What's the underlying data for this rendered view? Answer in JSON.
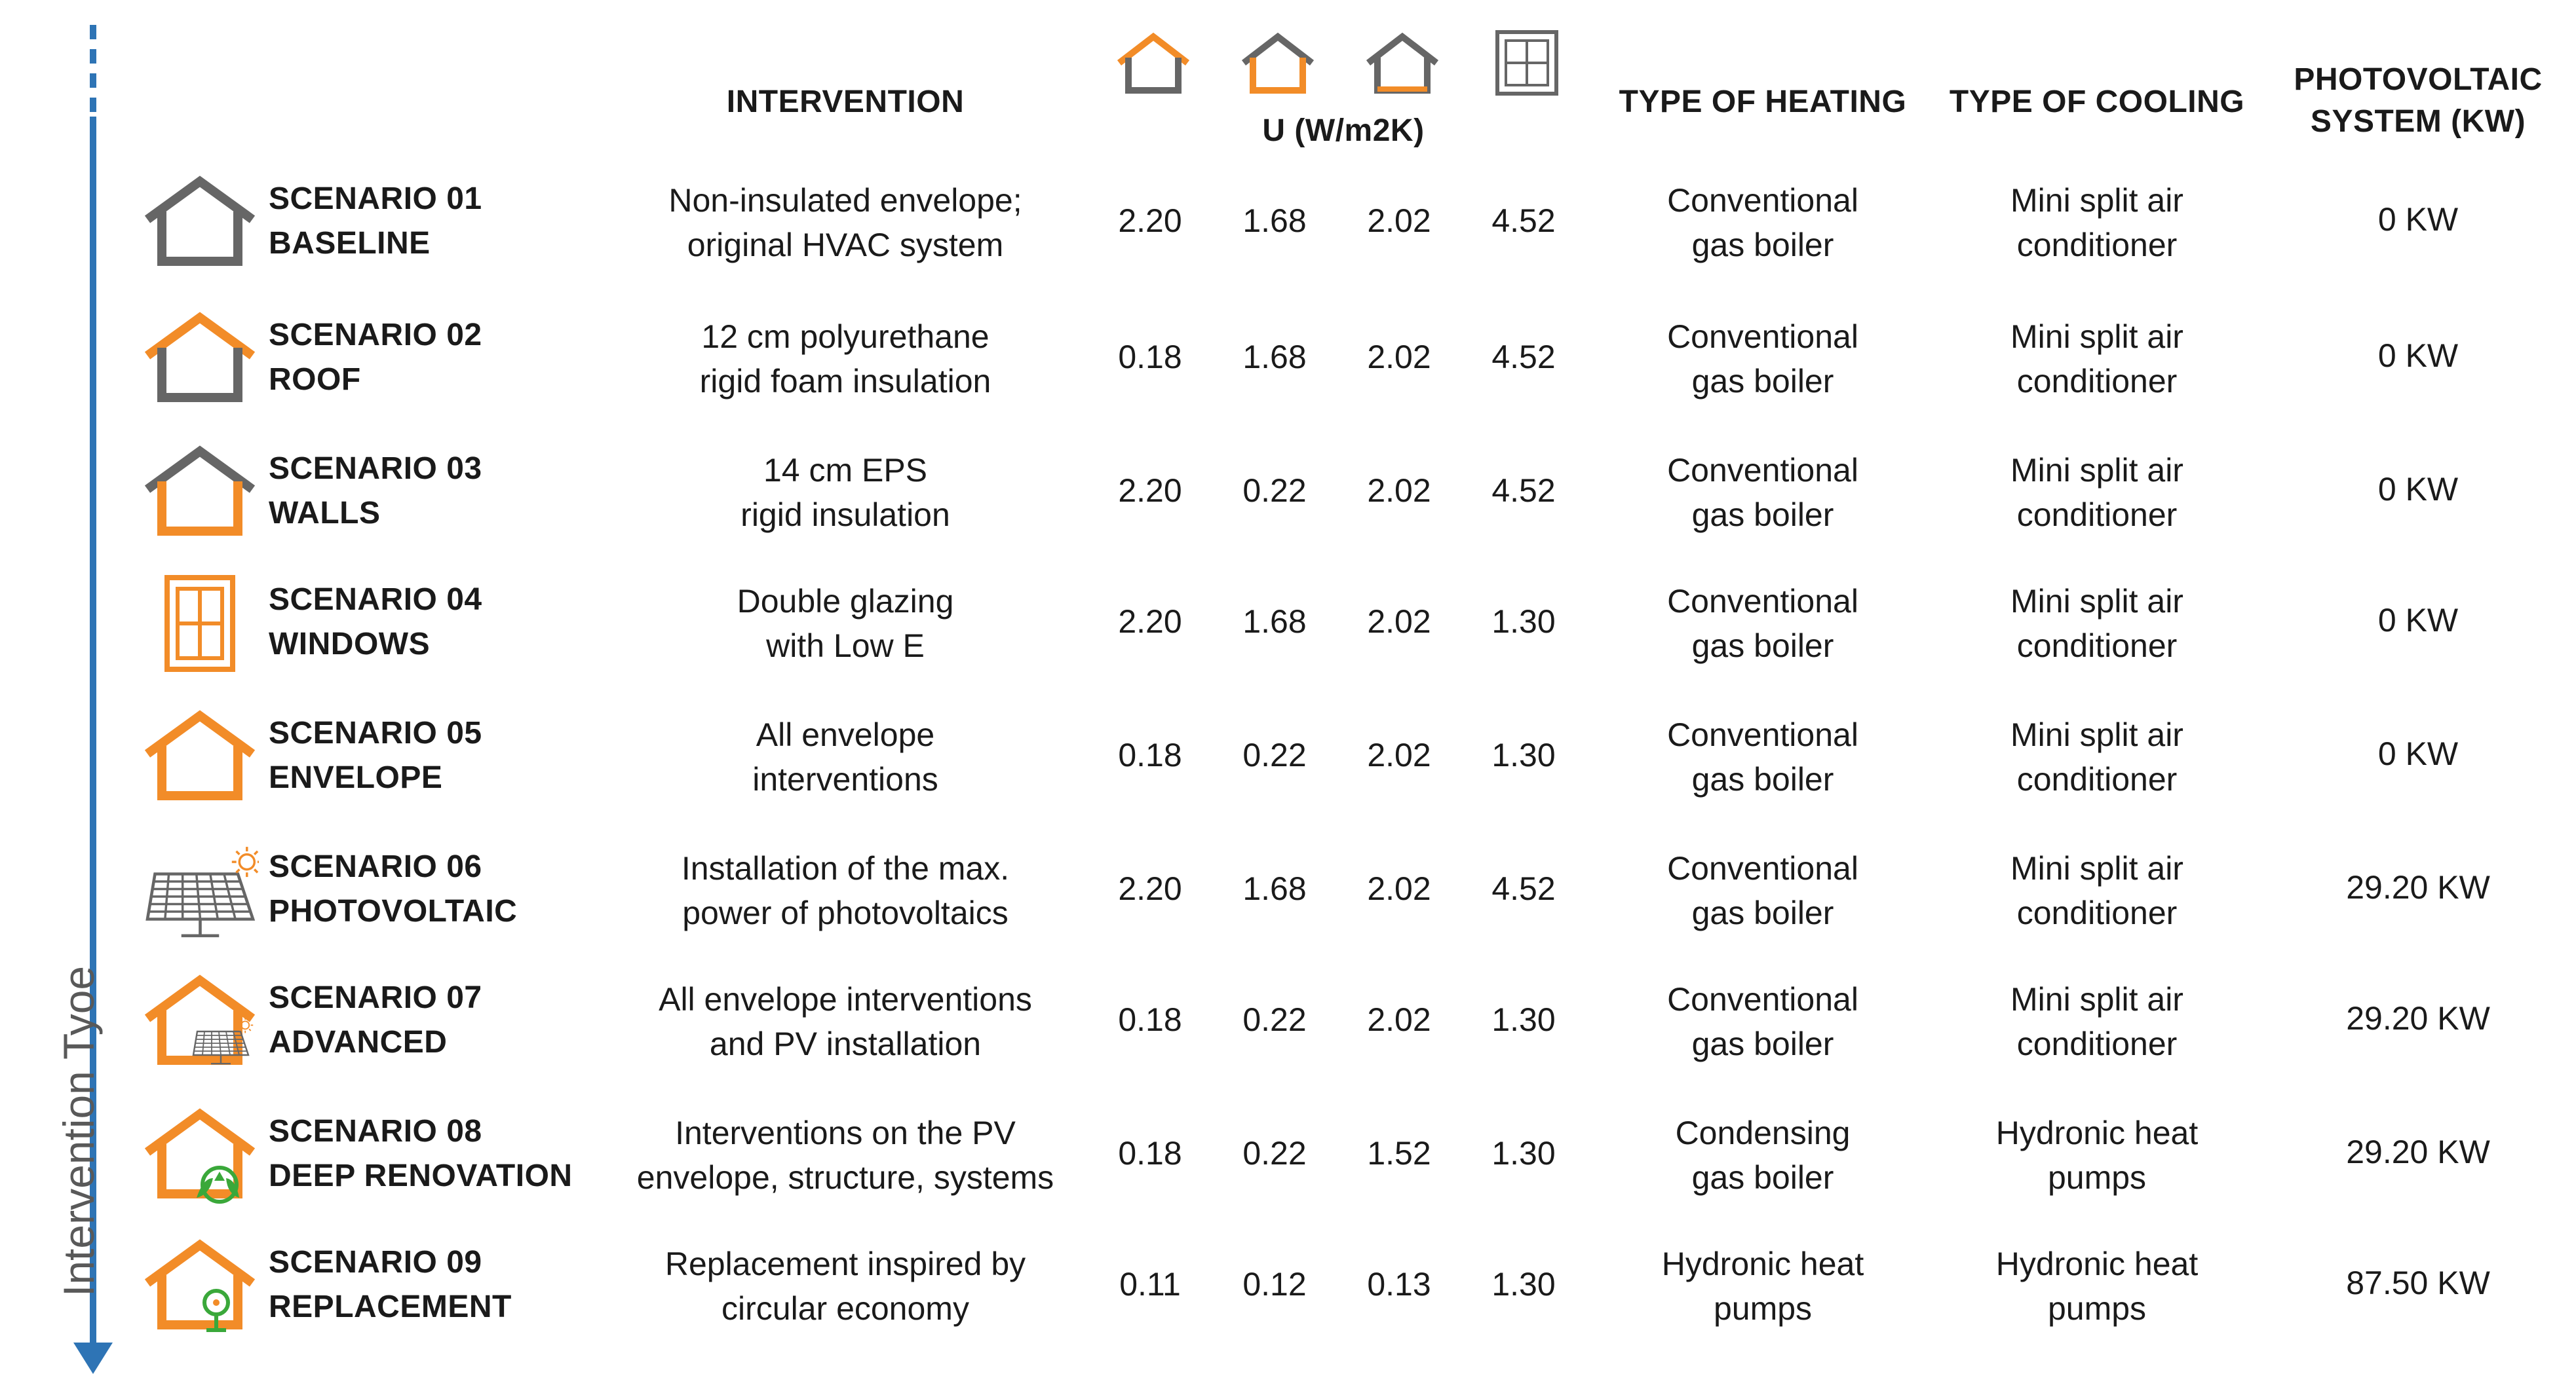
{
  "axis_label": "Intervention Tyoe",
  "headers": {
    "intervention": "INTERVENTION",
    "u_value": "U (W/m2K)",
    "heating": "TYPE OF HEATING",
    "cooling": "TYPE OF COOLING",
    "pv_line1": "PHOTOVOLTAIC",
    "pv_line2": "SYSTEM (KW)"
  },
  "colors": {
    "accent": "#f28c28",
    "gray": "#666666",
    "blue": "#2e74b5",
    "green": "#3aa83a"
  },
  "rows": [
    {
      "icon": "house-baseline-icon",
      "name_line1": "SCENARIO 01",
      "name_line2": "BASELINE",
      "intv_line1": "Non-insulated envelope;",
      "intv_line2": "original HVAC system",
      "u": [
        "2.20",
        "1.68",
        "2.02",
        "4.52"
      ],
      "heat_line1": "Conventional",
      "heat_line2": "gas boiler",
      "cool_line1": "Mini split air",
      "cool_line2": "conditioner",
      "pv": "0 KW"
    },
    {
      "icon": "house-roof-icon",
      "name_line1": "SCENARIO 02",
      "name_line2": "ROOF",
      "intv_line1": "12 cm polyurethane",
      "intv_line2": "rigid foam insulation",
      "u": [
        "0.18",
        "1.68",
        "2.02",
        "4.52"
      ],
      "heat_line1": "Conventional",
      "heat_line2": "gas boiler",
      "cool_line1": "Mini split air",
      "cool_line2": "conditioner",
      "pv": "0 KW"
    },
    {
      "icon": "house-walls-icon",
      "name_line1": "SCENARIO 03",
      "name_line2": "WALLS",
      "intv_line1": "14 cm EPS",
      "intv_line2": "rigid insulation",
      "u": [
        "2.20",
        "0.22",
        "2.02",
        "4.52"
      ],
      "heat_line1": "Conventional",
      "heat_line2": "gas boiler",
      "cool_line1": "Mini split air",
      "cool_line2": "conditioner",
      "pv": "0 KW"
    },
    {
      "icon": "window-icon",
      "name_line1": "SCENARIO 04",
      "name_line2": "WINDOWS",
      "intv_line1": "Double glazing",
      "intv_line2": "with Low E",
      "u": [
        "2.20",
        "1.68",
        "2.02",
        "1.30"
      ],
      "heat_line1": "Conventional",
      "heat_line2": "gas boiler",
      "cool_line1": "Mini split air",
      "cool_line2": "conditioner",
      "pv": "0 KW"
    },
    {
      "icon": "house-envelope-icon",
      "name_line1": "SCENARIO 05",
      "name_line2": "ENVELOPE",
      "intv_line1": "All envelope",
      "intv_line2": "interventions",
      "u": [
        "0.18",
        "0.22",
        "2.02",
        "1.30"
      ],
      "heat_line1": "Conventional",
      "heat_line2": "gas boiler",
      "cool_line1": "Mini split air",
      "cool_line2": "conditioner",
      "pv": "0 KW"
    },
    {
      "icon": "solar-panel-icon",
      "name_line1": "SCENARIO 06",
      "name_line2": "PHOTOVOLTAIC",
      "intv_line1": "Installation of the max.",
      "intv_line2": "power of photovoltaics",
      "u": [
        "2.20",
        "1.68",
        "2.02",
        "4.52"
      ],
      "heat_line1": "Conventional",
      "heat_line2": "gas boiler",
      "cool_line1": "Mini split air",
      "cool_line2": "conditioner",
      "pv": "29.20 KW"
    },
    {
      "icon": "house-solar-icon",
      "name_line1": "SCENARIO 07",
      "name_line2": "ADVANCED",
      "intv_line1": "All envelope interventions",
      "intv_line2": "and PV installation",
      "u": [
        "0.18",
        "0.22",
        "2.02",
        "1.30"
      ],
      "heat_line1": "Conventional",
      "heat_line2": "gas boiler",
      "cool_line1": "Mini split air",
      "cool_line2": "conditioner",
      "pv": "29.20 KW"
    },
    {
      "icon": "house-eco-icon",
      "name_line1": "SCENARIO 08",
      "name_line2": "DEEP RENOVATION",
      "intv_line1": "Interventions on the PV",
      "intv_line2": "envelope, structure, systems",
      "u": [
        "0.18",
        "0.22",
        "1.52",
        "1.30"
      ],
      "heat_line1": "Condensing",
      "heat_line2": "gas boiler",
      "cool_line1": "Hydronic heat",
      "cool_line2": "pumps",
      "pv": "29.20 KW"
    },
    {
      "icon": "house-circular-icon",
      "name_line1": "SCENARIO 09",
      "name_line2": "REPLACEMENT",
      "intv_line1": "Replacement inspired by",
      "intv_line2": "circular economy",
      "u": [
        "0.11",
        "0.12",
        "0.13",
        "1.30"
      ],
      "heat_line1": "Hydronic heat",
      "heat_line2": "pumps",
      "cool_line1": "Hydronic heat",
      "cool_line2": "pumps",
      "pv": "87.50 KW"
    }
  ]
}
